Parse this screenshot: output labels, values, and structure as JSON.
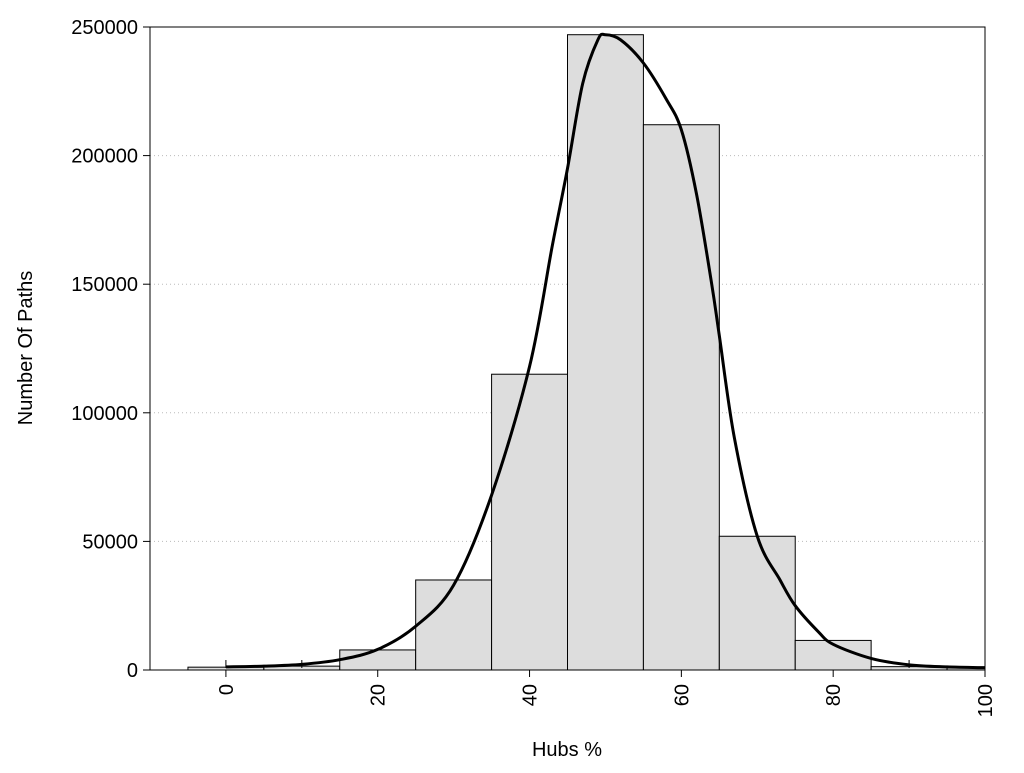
{
  "chart_data": {
    "type": "bar",
    "title": "",
    "xlabel": "Hubs %",
    "ylabel": "Number Of Paths",
    "xlim": [
      -10,
      100
    ],
    "ylim": [
      0,
      250000
    ],
    "grid": "horizontal-dotted",
    "bar_width": 10,
    "x_ticks": [
      "0",
      "20",
      "40",
      "60",
      "80",
      "100"
    ],
    "x_tick_values": [
      0,
      20,
      40,
      60,
      80,
      100
    ],
    "y_ticks": [
      "0",
      "50000",
      "100000",
      "150000",
      "200000",
      "250000"
    ],
    "y_tick_values": [
      0,
      50000,
      100000,
      150000,
      200000,
      250000
    ],
    "bar_colors": {
      "fill": "#dddddd",
      "stroke": "#000000"
    },
    "bars": {
      "x": [
        0,
        10,
        20,
        30,
        40,
        50,
        60,
        70,
        80,
        90,
        100
      ],
      "values": [
        1100,
        1500,
        7800,
        35000,
        115000,
        247000,
        212000,
        52000,
        11500,
        1300,
        800
      ]
    },
    "density_curve": {
      "name": "density",
      "color": "#000000",
      "x": [
        0,
        5,
        10,
        15,
        20,
        25,
        30,
        35,
        40,
        43,
        45,
        47,
        49,
        50,
        52,
        55,
        58,
        60,
        62,
        64,
        65,
        67,
        70,
        73,
        75,
        78,
        80,
        85,
        90,
        95,
        100
      ],
      "y": [
        1200,
        1500,
        2200,
        4000,
        8000,
        17000,
        33000,
        68000,
        118000,
        165000,
        195000,
        228000,
        245000,
        247000,
        245000,
        236000,
        222000,
        210000,
        185000,
        150000,
        130000,
        90000,
        52000,
        35000,
        25000,
        15000,
        10000,
        4500,
        2000,
        1200,
        900
      ]
    },
    "rug_ticks_x": [
      0,
      10,
      90
    ]
  }
}
